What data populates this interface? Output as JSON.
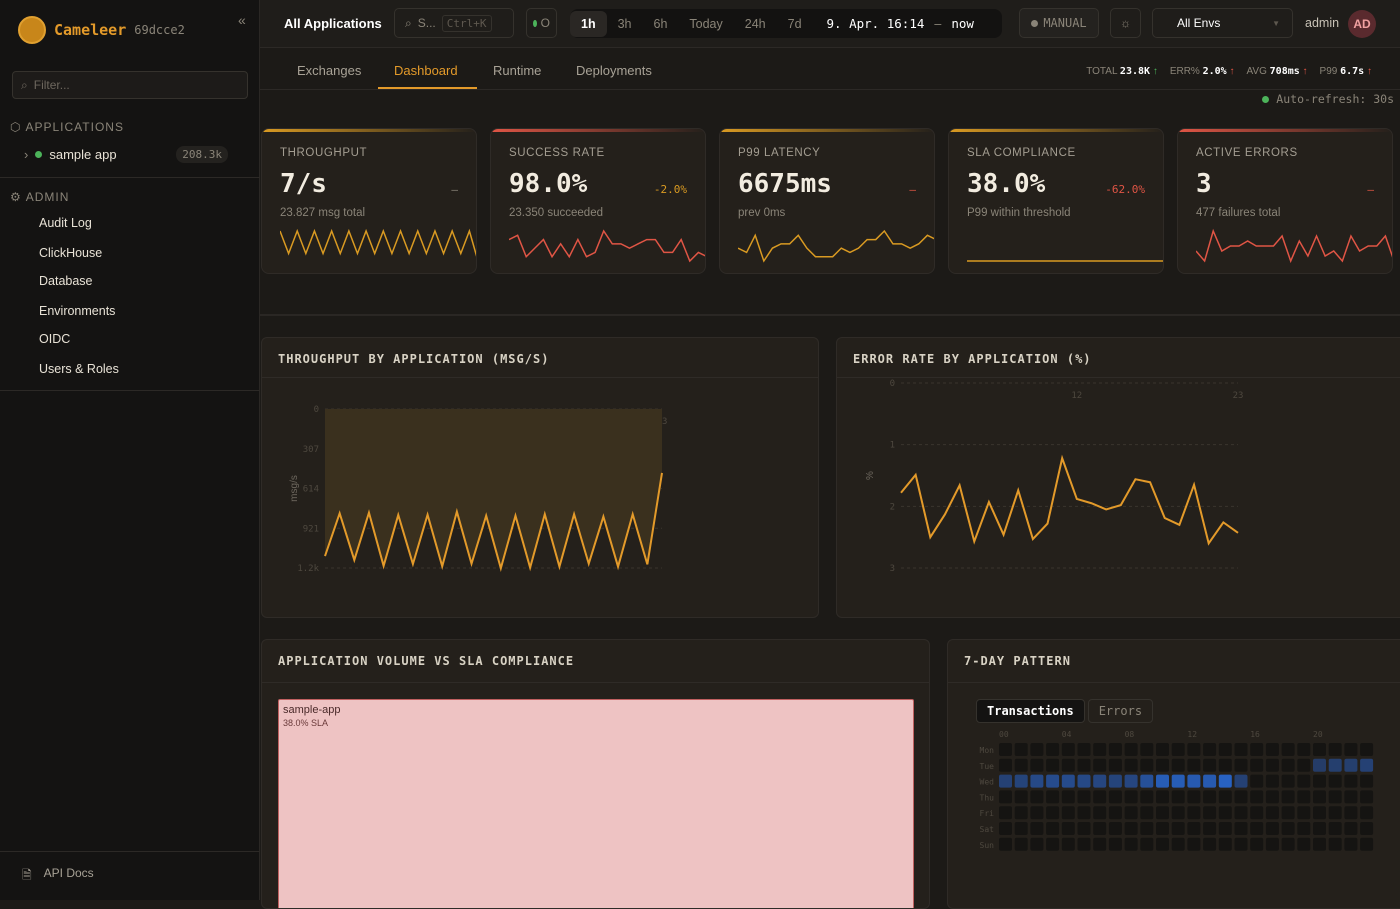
{
  "brand": {
    "name": "Cameleer",
    "version": "69dcce2",
    "collapse_icon": "«"
  },
  "sidebar": {
    "filter_placeholder": "Filter...",
    "applications_header": "APPLICATIONS",
    "apps": [
      {
        "name": "sample app",
        "count": "208.3k",
        "status_color": "#4cb35a"
      }
    ],
    "admin_header": "ADMIN",
    "admin_items": [
      "Audit Log",
      "ClickHouse",
      "Database",
      "Environments",
      "OIDC",
      "Users & Roles"
    ],
    "api_docs": "API Docs"
  },
  "header": {
    "title": "All Applications",
    "search_label": "S...",
    "search_shortcut": "Ctrl+K",
    "status_label": "O",
    "time_ranges": [
      "1h",
      "3h",
      "6h",
      "Today",
      "24h",
      "7d"
    ],
    "active_range": "1h",
    "range_start": "9. Apr. 16:14",
    "range_sep": "–",
    "range_end": "now",
    "refresh_mode": "MANUAL",
    "env_select": "All Envs",
    "user": "admin",
    "avatar_initials": "AD"
  },
  "tabs": [
    "Exchanges",
    "Dashboard",
    "Runtime",
    "Deployments"
  ],
  "active_tab": "Dashboard",
  "stats": [
    {
      "label": "TOTAL",
      "value": "23.8K",
      "arrow": "↑",
      "trend": "up-good"
    },
    {
      "label": "ERR%",
      "value": "2.0%",
      "arrow": "↑",
      "trend": "up-bad"
    },
    {
      "label": "AVG",
      "value": "708ms",
      "arrow": "↑",
      "trend": "up-bad"
    },
    {
      "label": "P99",
      "value": "6.7s",
      "arrow": "↑",
      "trend": "up-bad"
    }
  ],
  "auto_refresh": "Auto-refresh: 30s",
  "kpis": [
    {
      "label": "THROUGHPUT",
      "value": "7/s",
      "delta": "–",
      "delta_color": "#8a8478",
      "sub": "23.827 msg total",
      "accent": "#d99a22",
      "spark_color": "#d99a22",
      "spark": [
        8,
        2,
        8,
        2,
        8,
        2,
        8,
        2,
        8,
        2,
        8,
        2,
        8,
        2,
        8,
        2,
        8,
        2,
        8,
        2,
        8,
        2,
        8,
        0
      ]
    },
    {
      "label": "SUCCESS RATE",
      "value": "98.0%",
      "delta": "-2.0%",
      "delta_color": "#d99a22",
      "sub": "23.350 succeeded",
      "accent": "#e05545",
      "spark_color": "#e05545",
      "spark": [
        5,
        6,
        1,
        3,
        5,
        1,
        4,
        1,
        5,
        1,
        2,
        7,
        4,
        4,
        3,
        4,
        5,
        5,
        2,
        2,
        5,
        0,
        2,
        1
      ]
    },
    {
      "label": "P99 LATENCY",
      "value": "6675ms",
      "delta": "–",
      "delta_color": "#e05545",
      "sub": "prev 0ms",
      "accent": "#d99a22",
      "spark_color": "#d99a22",
      "spark": [
        3,
        2,
        6,
        0,
        3,
        4,
        4,
        6,
        3,
        1,
        1,
        1,
        3,
        2,
        3,
        5,
        5,
        7,
        4,
        4,
        3,
        4,
        6,
        5
      ]
    },
    {
      "label": "SLA COMPLIANCE",
      "value": "38.0%",
      "delta": "-62.0%",
      "delta_color": "#e05545",
      "sub": "P99 within threshold",
      "accent": "#d99a22",
      "spark_color": "#d99a22",
      "spark": [
        0,
        0
      ]
    },
    {
      "label": "ACTIVE ERRORS",
      "value": "3",
      "delta": "–",
      "delta_color": "#e05545",
      "sub": "477 failures total",
      "accent": "#e05545",
      "spark_color": "#e05545",
      "spark": [
        3,
        1,
        7,
        3,
        4,
        4,
        5,
        4,
        4,
        4,
        6,
        1,
        5,
        2,
        6,
        2,
        3,
        1,
        6,
        3,
        4,
        4,
        6,
        1
      ]
    }
  ],
  "chart_data": [
    {
      "type": "area",
      "title": "THROUGHPUT BY APPLICATION (MSG/S)",
      "ylabel": "msg/s",
      "x": [
        0,
        1,
        2,
        3,
        4,
        5,
        6,
        7,
        8,
        9,
        10,
        11,
        12,
        13,
        14,
        15,
        16,
        17,
        18,
        19,
        20,
        21,
        22,
        23
      ],
      "xticks": [
        "12",
        "23"
      ],
      "yticks": [
        "0",
        "307",
        "614",
        "921",
        "1.2k"
      ],
      "ylim": [
        0,
        1228
      ],
      "grid": true,
      "color": "#e39a2a",
      "values": [
        1136,
        806,
        1166,
        801,
        1212,
        818,
        1197,
        816,
        1215,
        793,
        1195,
        824,
        1230,
        824,
        1225,
        813,
        1218,
        813,
        1195,
        831,
        1218,
        813,
        1200,
        494
      ]
    },
    {
      "type": "line",
      "title": "ERROR RATE BY APPLICATION (%)",
      "ylabel": "%",
      "x": [
        0,
        1,
        2,
        3,
        4,
        5,
        6,
        7,
        8,
        9,
        10,
        11,
        12,
        13,
        14,
        15,
        16,
        17,
        18,
        19,
        20,
        21,
        22,
        23
      ],
      "xticks": [
        "12",
        "23"
      ],
      "yticks": [
        "0",
        "1",
        "2",
        "3"
      ],
      "ylim": [
        0,
        3
      ],
      "grid": true,
      "color": "#e39a2a",
      "values": [
        1.78,
        1.49,
        2.5,
        2.13,
        1.66,
        2.57,
        1.93,
        2.46,
        1.74,
        2.53,
        2.28,
        1.22,
        1.88,
        1.95,
        2.05,
        1.98,
        1.56,
        1.61,
        2.19,
        2.3,
        1.65,
        2.6,
        2.26,
        2.43
      ]
    },
    {
      "type": "heatmap",
      "title": "7-DAY PATTERN",
      "tabs": [
        "Transactions",
        "Errors"
      ],
      "active_tab": "Transactions",
      "rows": [
        "Mon",
        "Tue",
        "Wed",
        "Thu",
        "Fri",
        "Sat",
        "Sun"
      ],
      "col_labels": [
        "00",
        "04",
        "08",
        "12",
        "16",
        "20"
      ],
      "cells": [
        {
          "day": "Tue",
          "hours": [
            20,
            21,
            22,
            23
          ],
          "intensity": [
            0.2,
            0.25,
            0.25,
            0.3
          ]
        },
        {
          "day": "Wed",
          "hours": [
            0,
            1,
            2,
            3,
            4,
            5,
            6,
            7,
            8,
            9,
            10,
            11,
            12,
            13,
            14,
            15
          ],
          "intensity": [
            0.3,
            0.35,
            0.45,
            0.5,
            0.5,
            0.45,
            0.4,
            0.35,
            0.4,
            0.6,
            0.85,
            0.85,
            0.8,
            0.8,
            0.95,
            0.3
          ]
        }
      ]
    }
  ],
  "treemap": {
    "title": "APPLICATION VOLUME VS SLA COMPLIANCE",
    "items": [
      {
        "name": "sample-app",
        "sla": "38.0% SLA"
      }
    ]
  }
}
